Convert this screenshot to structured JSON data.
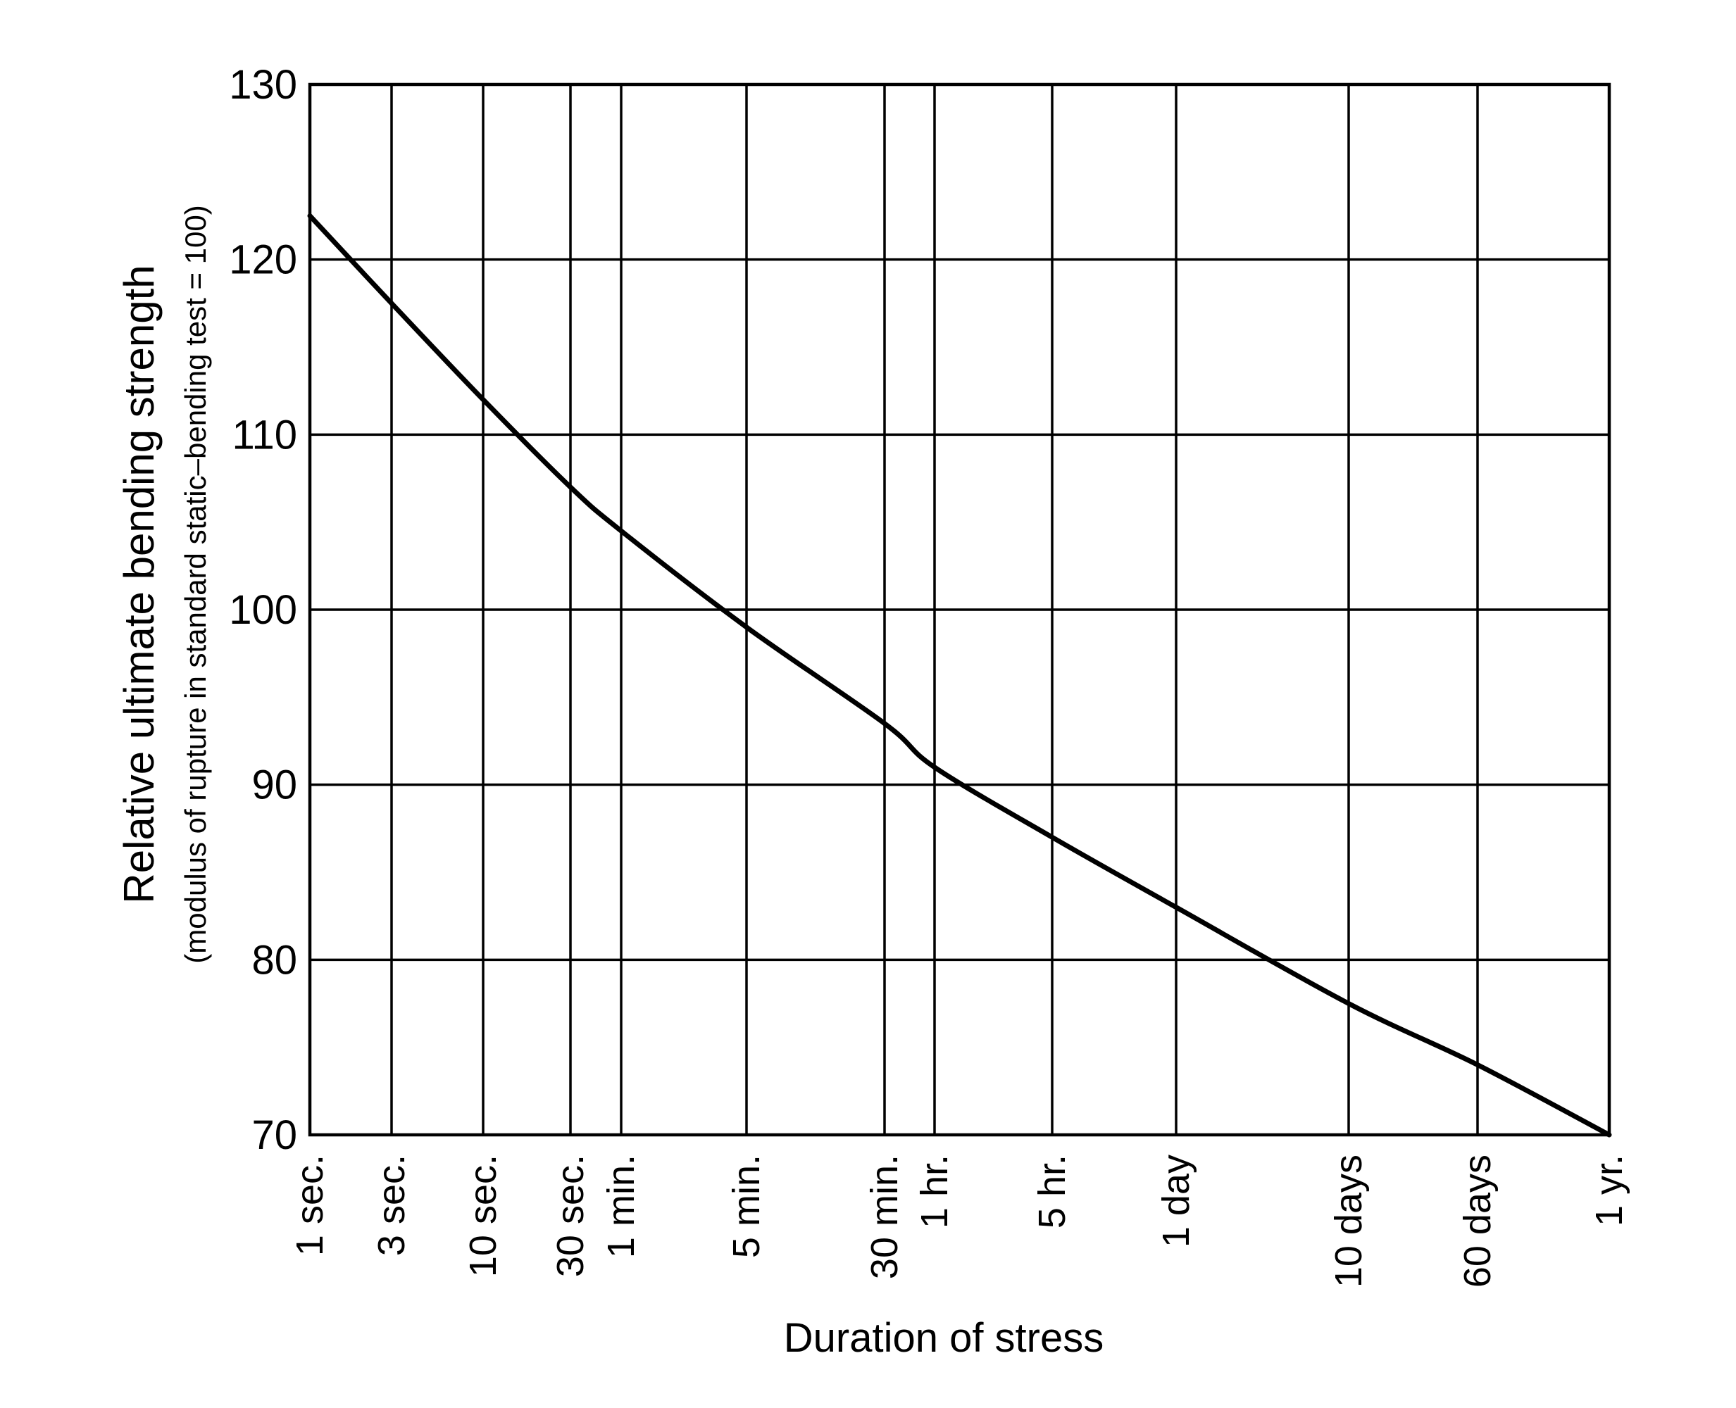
{
  "chart_data": {
    "type": "line",
    "title": "",
    "xlabel": "Duration of stress",
    "ylabel": "Relative ultimate bending strength",
    "ylabel_sub": "(modulus of rupture in standard static–bending test = 100)",
    "x_scale": "log",
    "ylim": [
      70,
      130
    ],
    "grid": true,
    "y_ticks": [
      70,
      80,
      90,
      100,
      110,
      120,
      130
    ],
    "x_ticks": [
      {
        "label": "1 sec."
      },
      {
        "label": "3 sec."
      },
      {
        "label": "10 sec."
      },
      {
        "label": "30 sec."
      },
      {
        "label": "1 min."
      },
      {
        "label": "5 min."
      },
      {
        "label": "30 min."
      },
      {
        "label": "1 hr."
      },
      {
        "label": "5 hr."
      },
      {
        "label": "1 day"
      },
      {
        "label": "10 days"
      },
      {
        "label": "60 days"
      },
      {
        "label": "1 yr."
      }
    ],
    "series": [
      {
        "x": [
          "1 sec.",
          "3 sec.",
          "10 sec.",
          "30 sec.",
          "1 min.",
          "5 min.",
          "30 min.",
          "1 hr.",
          "5 hr.",
          "1 day",
          "10 days",
          "60 days",
          "1 yr."
        ],
        "values": [
          122.5,
          117.5,
          112,
          107,
          104.5,
          99,
          93.5,
          91,
          87,
          83,
          77.5,
          74,
          70
        ]
      }
    ],
    "colors": {
      "line": "#000000",
      "grid": "#000000",
      "background": "#ffffff"
    }
  }
}
